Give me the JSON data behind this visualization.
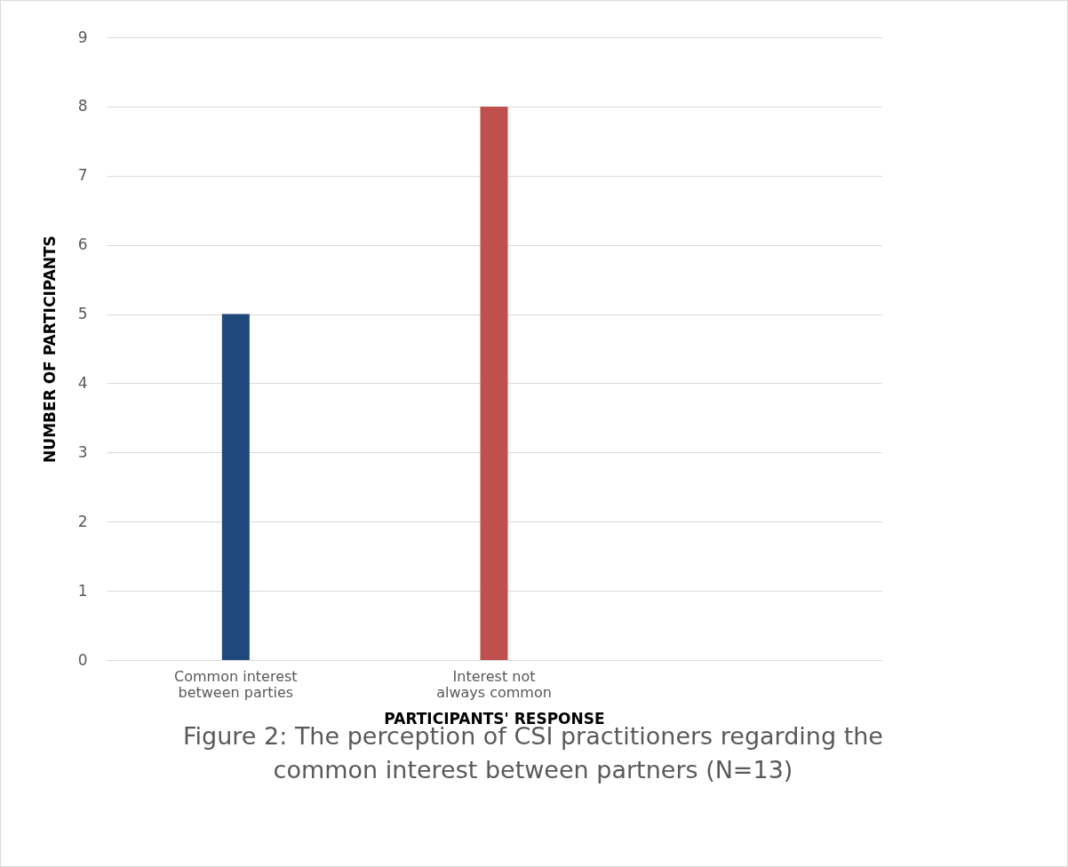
{
  "chart_data": {
    "type": "bar",
    "categories": [
      "Common interest between parties",
      "Interest not always common",
      null
    ],
    "values": [
      5,
      8,
      null
    ],
    "colors": [
      "#1f497d",
      "#c0504d",
      "#4f81bd"
    ],
    "xlabel": "PARTICIPANTS' RESPONSE",
    "ylabel": "NUMBER OF PARTICIPANTS",
    "ylim": [
      0,
      9
    ],
    "yticks": [
      0,
      1,
      2,
      3,
      4,
      5,
      6,
      7,
      8,
      9
    ],
    "grid": "y",
    "annotations": [
      "Figure 2: The perception of CSI practitioners regarding the common interest between partners (N=13)"
    ]
  }
}
